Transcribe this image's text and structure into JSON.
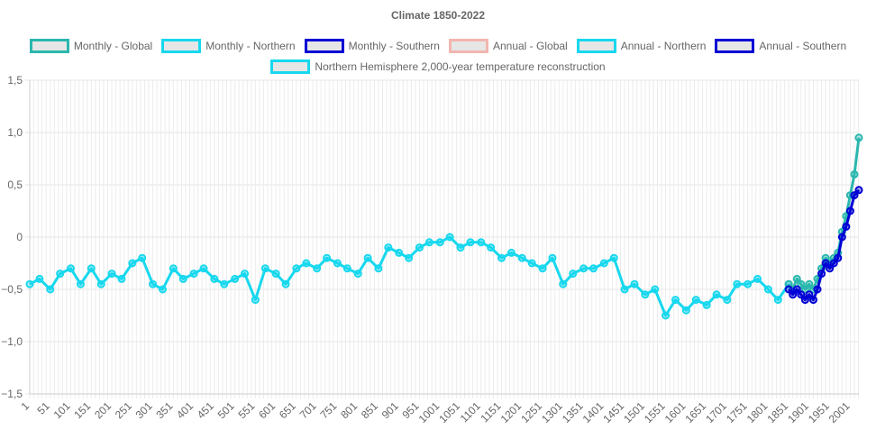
{
  "chart_data": {
    "type": "line",
    "title": "Climate 1850-2022",
    "xlabel": "",
    "ylabel": "",
    "ylim": [
      -1.5,
      1.5
    ],
    "y_ticks": [
      "1,5",
      "1,0",
      "0,5",
      "0",
      "−0,5",
      "−1,0",
      "−1,5"
    ],
    "y_tick_values": [
      1.5,
      1.0,
      0.5,
      0,
      -0.5,
      -1.0,
      -1.5
    ],
    "x_range": [
      1,
      2022
    ],
    "x_ticks": [
      "1",
      "51",
      "101",
      "151",
      "201",
      "251",
      "301",
      "351",
      "401",
      "451",
      "501",
      "551",
      "601",
      "651",
      "701",
      "751",
      "801",
      "851",
      "901",
      "951",
      "1001",
      "1051",
      "1101",
      "1151",
      "1201",
      "1251",
      "1301",
      "1351",
      "1401",
      "1451",
      "1501",
      "1551",
      "1601",
      "1651",
      "1701",
      "1751",
      "1801",
      "1851",
      "1901",
      "1951",
      "2001"
    ],
    "grid": true,
    "legend_position": "top",
    "legend": [
      {
        "name": "Monthly - Global",
        "color": "#2ab7ae",
        "fill": "#e6e6e6"
      },
      {
        "name": "Monthly - Northern",
        "color": "#17d8ee",
        "fill": "#e6e6e6"
      },
      {
        "name": "Monthly - Southern",
        "color": "#0000d6",
        "fill": "#e6e6e6"
      },
      {
        "name": "Annual - Global",
        "color": "#f2b6b0",
        "fill": "#e6e6e6"
      },
      {
        "name": "Annual - Northern",
        "color": "#17d8ee",
        "fill": "#e6e6e6"
      },
      {
        "name": "Annual - Southern",
        "color": "#0000d6",
        "fill": "#e6e6e6"
      },
      {
        "name": "Northern Hemisphere 2,000-year temperature reconstruction",
        "color": "#17d8ee",
        "fill": "#e6e6e6"
      }
    ],
    "series": [
      {
        "name": "Northern Hemisphere 2,000-year temperature reconstruction",
        "color": "#17d8ee",
        "x": [
          1,
          25,
          51,
          75,
          101,
          125,
          151,
          175,
          201,
          225,
          251,
          275,
          301,
          325,
          351,
          375,
          401,
          425,
          451,
          475,
          501,
          525,
          551,
          575,
          601,
          625,
          651,
          675,
          701,
          725,
          751,
          775,
          801,
          825,
          851,
          875,
          901,
          925,
          951,
          975,
          1001,
          1025,
          1051,
          1075,
          1101,
          1125,
          1151,
          1175,
          1201,
          1225,
          1251,
          1275,
          1301,
          1325,
          1351,
          1375,
          1401,
          1425,
          1451,
          1475,
          1501,
          1525,
          1551,
          1575,
          1601,
          1625,
          1651,
          1675,
          1701,
          1725,
          1751,
          1775,
          1801,
          1825,
          1851
        ],
        "y": [
          -0.45,
          -0.4,
          -0.5,
          -0.35,
          -0.3,
          -0.45,
          -0.3,
          -0.45,
          -0.35,
          -0.4,
          -0.25,
          -0.2,
          -0.45,
          -0.5,
          -0.3,
          -0.4,
          -0.35,
          -0.3,
          -0.4,
          -0.45,
          -0.4,
          -0.35,
          -0.6,
          -0.3,
          -0.35,
          -0.45,
          -0.3,
          -0.25,
          -0.3,
          -0.2,
          -0.25,
          -0.3,
          -0.35,
          -0.2,
          -0.3,
          -0.1,
          -0.15,
          -0.2,
          -0.1,
          -0.05,
          -0.05,
          0.0,
          -0.1,
          -0.05,
          -0.05,
          -0.1,
          -0.2,
          -0.15,
          -0.2,
          -0.25,
          -0.3,
          -0.2,
          -0.45,
          -0.35,
          -0.3,
          -0.3,
          -0.25,
          -0.2,
          -0.5,
          -0.45,
          -0.55,
          -0.5,
          -0.75,
          -0.6,
          -0.7,
          -0.6,
          -0.65,
          -0.55,
          -0.6,
          -0.45,
          -0.45,
          -0.4,
          -0.5,
          -0.6,
          -0.45
        ]
      },
      {
        "name": "Monthly - Global",
        "color": "#2ab7ae",
        "x": [
          1851,
          1861,
          1871,
          1881,
          1891,
          1901,
          1911,
          1921,
          1931,
          1941,
          1951,
          1961,
          1971,
          1981,
          1991,
          2001,
          2011,
          2022
        ],
        "y": [
          -0.45,
          -0.5,
          -0.4,
          -0.45,
          -0.5,
          -0.45,
          -0.5,
          -0.4,
          -0.3,
          -0.2,
          -0.25,
          -0.2,
          -0.15,
          0.05,
          0.2,
          0.4,
          0.6,
          0.95
        ]
      },
      {
        "name": "Monthly - Southern",
        "color": "#0000d6",
        "x": [
          1851,
          1861,
          1871,
          1881,
          1891,
          1901,
          1911,
          1921,
          1931,
          1941,
          1951,
          1961,
          1971,
          1981,
          1991,
          2001,
          2011,
          2022
        ],
        "y": [
          -0.5,
          -0.55,
          -0.5,
          -0.55,
          -0.6,
          -0.55,
          -0.6,
          -0.5,
          -0.35,
          -0.25,
          -0.3,
          -0.25,
          -0.2,
          0.0,
          0.1,
          0.25,
          0.4,
          0.45
        ]
      }
    ]
  }
}
